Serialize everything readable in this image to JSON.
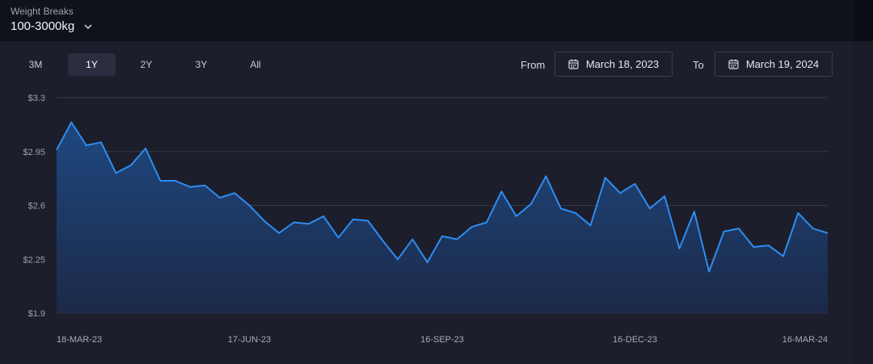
{
  "header": {
    "label": "Weight Breaks",
    "selected": "100-3000kg"
  },
  "range_tabs": [
    {
      "label": "3M",
      "active": false
    },
    {
      "label": "1Y",
      "active": true
    },
    {
      "label": "2Y",
      "active": false
    },
    {
      "label": "3Y",
      "active": false
    },
    {
      "label": "All",
      "active": false
    }
  ],
  "date_range": {
    "from_label": "From",
    "from_value": "March 18, 2023",
    "to_label": "To",
    "to_value": "March 19, 2024"
  },
  "colors": {
    "line": "#2f8cf0",
    "background": "#1c1e2b",
    "grid": "#343848"
  },
  "chart_data": {
    "type": "area",
    "title": "",
    "xlabel": "",
    "ylabel": "",
    "ylim": [
      1.9,
      3.3
    ],
    "yticks": [
      "$1.9",
      "$2.25",
      "$2.6",
      "$2.95",
      "$3.3"
    ],
    "ytick_values": [
      1.9,
      2.25,
      2.6,
      2.95,
      3.3
    ],
    "xticks": [
      "18-MAR-23",
      "17-JUN-23",
      "16-SEP-23",
      "16-DEC-23",
      "16-MAR-24"
    ],
    "xlim": [
      "2023-03-18",
      "2024-03-16"
    ],
    "grid": true,
    "series": [
      {
        "values": [
          2.96,
          3.14,
          2.99,
          3.01,
          2.81,
          2.86,
          2.97,
          2.76,
          2.76,
          2.72,
          2.73,
          2.65,
          2.68,
          2.6,
          2.5,
          2.42,
          2.49,
          2.48,
          2.53,
          2.39,
          2.51,
          2.5,
          2.37,
          2.25,
          2.38,
          2.23,
          2.4,
          2.38,
          2.46,
          2.49,
          2.69,
          2.53,
          2.61,
          2.79,
          2.58,
          2.55,
          2.47,
          2.78,
          2.68,
          2.74,
          2.58,
          2.66,
          2.32,
          2.56,
          2.17,
          2.43,
          2.45,
          2.33,
          2.34,
          2.27,
          2.55,
          2.45,
          2.42
        ]
      }
    ]
  }
}
